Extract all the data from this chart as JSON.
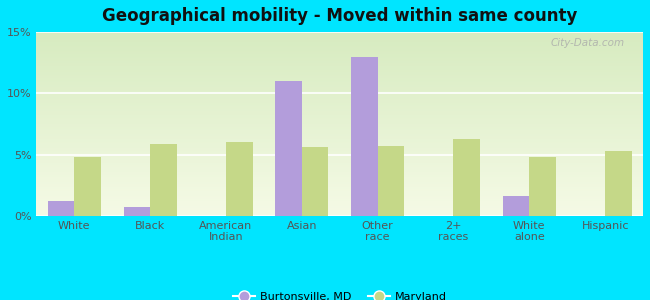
{
  "title": "Geographical mobility - Moved within same county",
  "categories": [
    "White",
    "Black",
    "American\nIndian",
    "Asian",
    "Other\nrace",
    "2+\nraces",
    "White\nalone",
    "Hispanic"
  ],
  "burtonsville_values": [
    1.2,
    0.7,
    0.0,
    11.0,
    13.0,
    0.0,
    1.6,
    0.0
  ],
  "maryland_values": [
    4.8,
    5.9,
    6.0,
    5.6,
    5.7,
    6.3,
    4.8,
    5.3
  ],
  "burtonsville_color": "#b39ddb",
  "maryland_color": "#c5d888",
  "ylim": [
    0,
    15
  ],
  "yticks": [
    0,
    5,
    10,
    15
  ],
  "ytick_labels": [
    "0%",
    "5%",
    "10%",
    "15%"
  ],
  "legend_labels": [
    "Burtonsville, MD",
    "Maryland"
  ],
  "bar_width": 0.35,
  "background_color_fig": "#00e5ff",
  "watermark": "City-Data.com",
  "title_fontsize": 12,
  "axis_label_fontsize": 8,
  "tick_fontsize": 8
}
